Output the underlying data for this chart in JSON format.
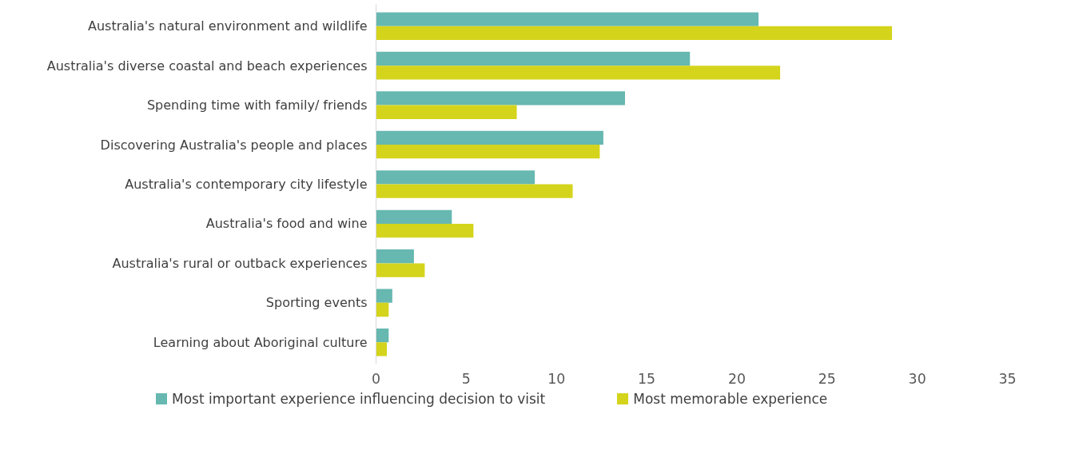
{
  "chart_data": {
    "type": "bar",
    "orientation": "horizontal",
    "categories": [
      "Australia's natural environment and wildlife",
      "Australia's diverse coastal and beach experiences",
      "Spending time with family/ friends",
      "Discovering Australia's people and places",
      "Australia's contemporary city lifestyle",
      "Australia's food and wine",
      "Australia's rural or outback experiences",
      "Sporting events",
      "Learning about Aboriginal culture"
    ],
    "series": [
      {
        "name": "Most important experience influencing decision to visit",
        "color": "#66b8b0",
        "values": [
          21.2,
          17.4,
          13.8,
          12.6,
          8.8,
          4.2,
          2.1,
          0.9,
          0.7
        ]
      },
      {
        "name": "Most memorable experience",
        "color": "#d4d41c",
        "values": [
          28.6,
          22.4,
          7.8,
          12.4,
          10.9,
          5.4,
          2.7,
          0.7,
          0.6
        ]
      }
    ],
    "xlim": [
      0,
      35
    ],
    "xticks": [
      0,
      5,
      10,
      15,
      20,
      25,
      30,
      35
    ],
    "grid": false,
    "legend": "bottom"
  }
}
